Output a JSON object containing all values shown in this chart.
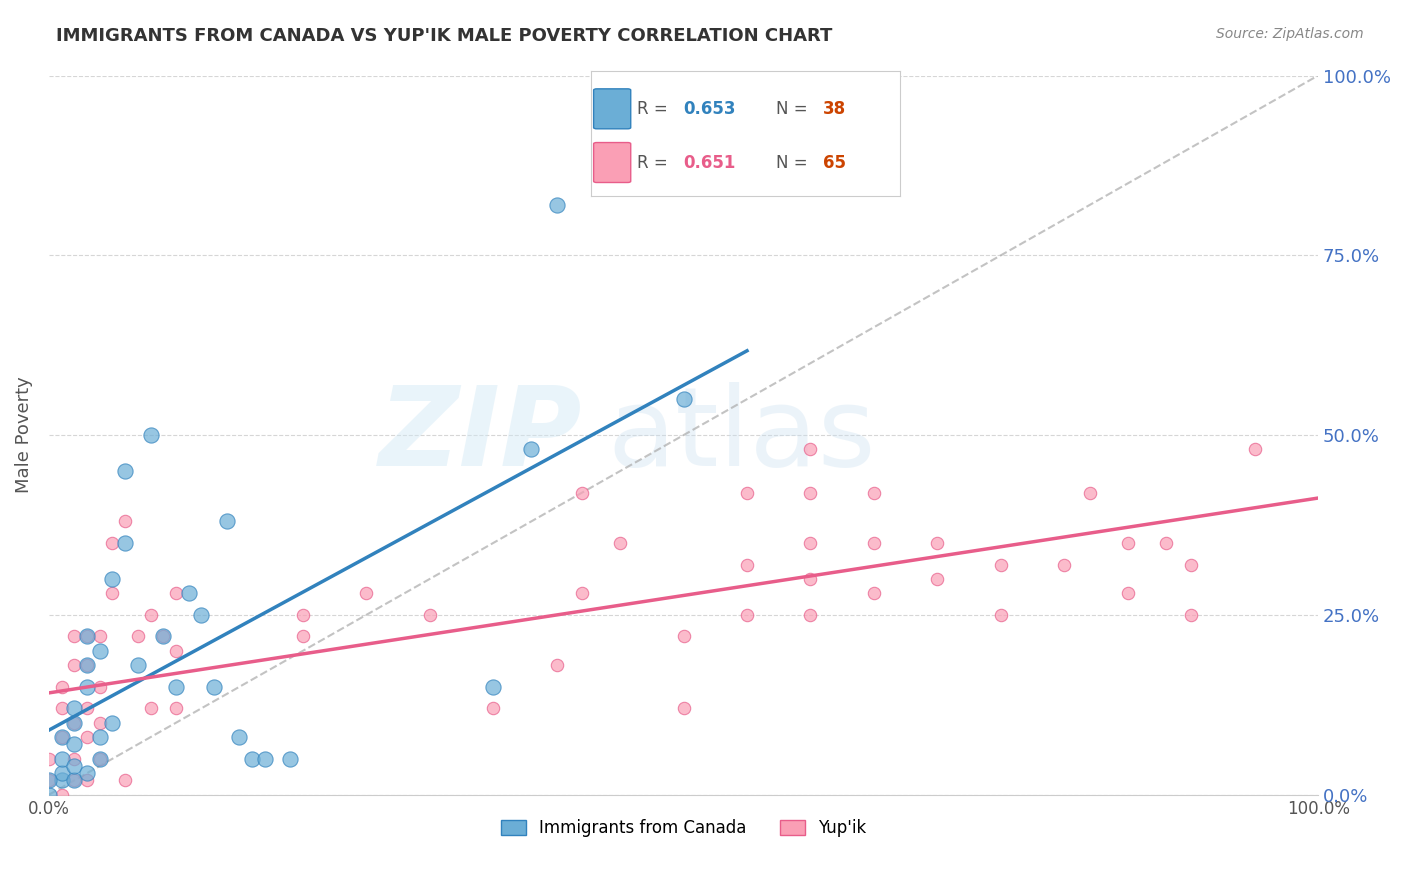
{
  "title": "IMMIGRANTS FROM CANADA VS YUP'IK MALE POVERTY CORRELATION CHART",
  "source": "Source: ZipAtlas.com",
  "ylabel": "Male Poverty",
  "ytick_labels": [
    "0.0%",
    "25.0%",
    "50.0%",
    "75.0%",
    "100.0%"
  ],
  "ytick_values": [
    0.0,
    0.25,
    0.5,
    0.75,
    1.0
  ],
  "xlim": [
    0.0,
    1.0
  ],
  "ylim": [
    0.0,
    1.0
  ],
  "legend1_r": "0.653",
  "legend1_n": "38",
  "legend2_r": "0.651",
  "legend2_n": "65",
  "legend1_label": "Immigrants from Canada",
  "legend2_label": "Yup'ik",
  "color_blue": "#6baed6",
  "color_pink": "#fa9fb5",
  "color_blue_line": "#3182bd",
  "color_pink_line": "#e85d8a",
  "color_title": "#333333",
  "color_ytick": "#4472c4",
  "background_color": "#ffffff",
  "grid_color": "#cccccc",
  "scatter_blue": [
    [
      0.0,
      0.0
    ],
    [
      0.01,
      0.02
    ],
    [
      0.01,
      0.03
    ],
    [
      0.01,
      0.05
    ],
    [
      0.01,
      0.08
    ],
    [
      0.02,
      0.02
    ],
    [
      0.02,
      0.04
    ],
    [
      0.02,
      0.07
    ],
    [
      0.02,
      0.1
    ],
    [
      0.02,
      0.12
    ],
    [
      0.03,
      0.03
    ],
    [
      0.03,
      0.15
    ],
    [
      0.03,
      0.18
    ],
    [
      0.03,
      0.22
    ],
    [
      0.04,
      0.05
    ],
    [
      0.04,
      0.08
    ],
    [
      0.04,
      0.2
    ],
    [
      0.05,
      0.3
    ],
    [
      0.05,
      0.1
    ],
    [
      0.06,
      0.35
    ],
    [
      0.06,
      0.45
    ],
    [
      0.07,
      0.18
    ],
    [
      0.08,
      0.5
    ],
    [
      0.09,
      0.22
    ],
    [
      0.1,
      0.15
    ],
    [
      0.11,
      0.28
    ],
    [
      0.12,
      0.25
    ],
    [
      0.13,
      0.15
    ],
    [
      0.14,
      0.38
    ],
    [
      0.15,
      0.08
    ],
    [
      0.16,
      0.05
    ],
    [
      0.17,
      0.05
    ],
    [
      0.19,
      0.05
    ],
    [
      0.35,
      0.15
    ],
    [
      0.38,
      0.48
    ],
    [
      0.4,
      0.82
    ],
    [
      0.5,
      0.55
    ],
    [
      0.0,
      0.02
    ]
  ],
  "scatter_pink": [
    [
      0.0,
      0.02
    ],
    [
      0.0,
      0.05
    ],
    [
      0.01,
      0.0
    ],
    [
      0.01,
      0.08
    ],
    [
      0.01,
      0.12
    ],
    [
      0.01,
      0.15
    ],
    [
      0.02,
      0.02
    ],
    [
      0.02,
      0.05
    ],
    [
      0.02,
      0.1
    ],
    [
      0.02,
      0.18
    ],
    [
      0.02,
      0.22
    ],
    [
      0.03,
      0.02
    ],
    [
      0.03,
      0.08
    ],
    [
      0.03,
      0.12
    ],
    [
      0.03,
      0.18
    ],
    [
      0.03,
      0.22
    ],
    [
      0.04,
      0.05
    ],
    [
      0.04,
      0.1
    ],
    [
      0.04,
      0.15
    ],
    [
      0.04,
      0.22
    ],
    [
      0.05,
      0.28
    ],
    [
      0.05,
      0.35
    ],
    [
      0.06,
      0.02
    ],
    [
      0.06,
      0.38
    ],
    [
      0.07,
      0.22
    ],
    [
      0.08,
      0.12
    ],
    [
      0.08,
      0.25
    ],
    [
      0.09,
      0.22
    ],
    [
      0.1,
      0.12
    ],
    [
      0.1,
      0.2
    ],
    [
      0.1,
      0.28
    ],
    [
      0.2,
      0.22
    ],
    [
      0.2,
      0.25
    ],
    [
      0.25,
      0.28
    ],
    [
      0.3,
      0.25
    ],
    [
      0.35,
      0.12
    ],
    [
      0.4,
      0.18
    ],
    [
      0.42,
      0.42
    ],
    [
      0.42,
      0.28
    ],
    [
      0.45,
      0.35
    ],
    [
      0.5,
      0.12
    ],
    [
      0.5,
      0.22
    ],
    [
      0.55,
      0.25
    ],
    [
      0.55,
      0.32
    ],
    [
      0.55,
      0.42
    ],
    [
      0.6,
      0.25
    ],
    [
      0.6,
      0.3
    ],
    [
      0.6,
      0.35
    ],
    [
      0.6,
      0.42
    ],
    [
      0.6,
      0.48
    ],
    [
      0.65,
      0.28
    ],
    [
      0.65,
      0.35
    ],
    [
      0.65,
      0.42
    ],
    [
      0.7,
      0.3
    ],
    [
      0.7,
      0.35
    ],
    [
      0.75,
      0.25
    ],
    [
      0.75,
      0.32
    ],
    [
      0.8,
      0.32
    ],
    [
      0.82,
      0.42
    ],
    [
      0.85,
      0.28
    ],
    [
      0.85,
      0.35
    ],
    [
      0.88,
      0.35
    ],
    [
      0.9,
      0.25
    ],
    [
      0.9,
      0.32
    ],
    [
      0.95,
      0.48
    ]
  ],
  "dot_size_blue": 120,
  "dot_size_pink": 80
}
